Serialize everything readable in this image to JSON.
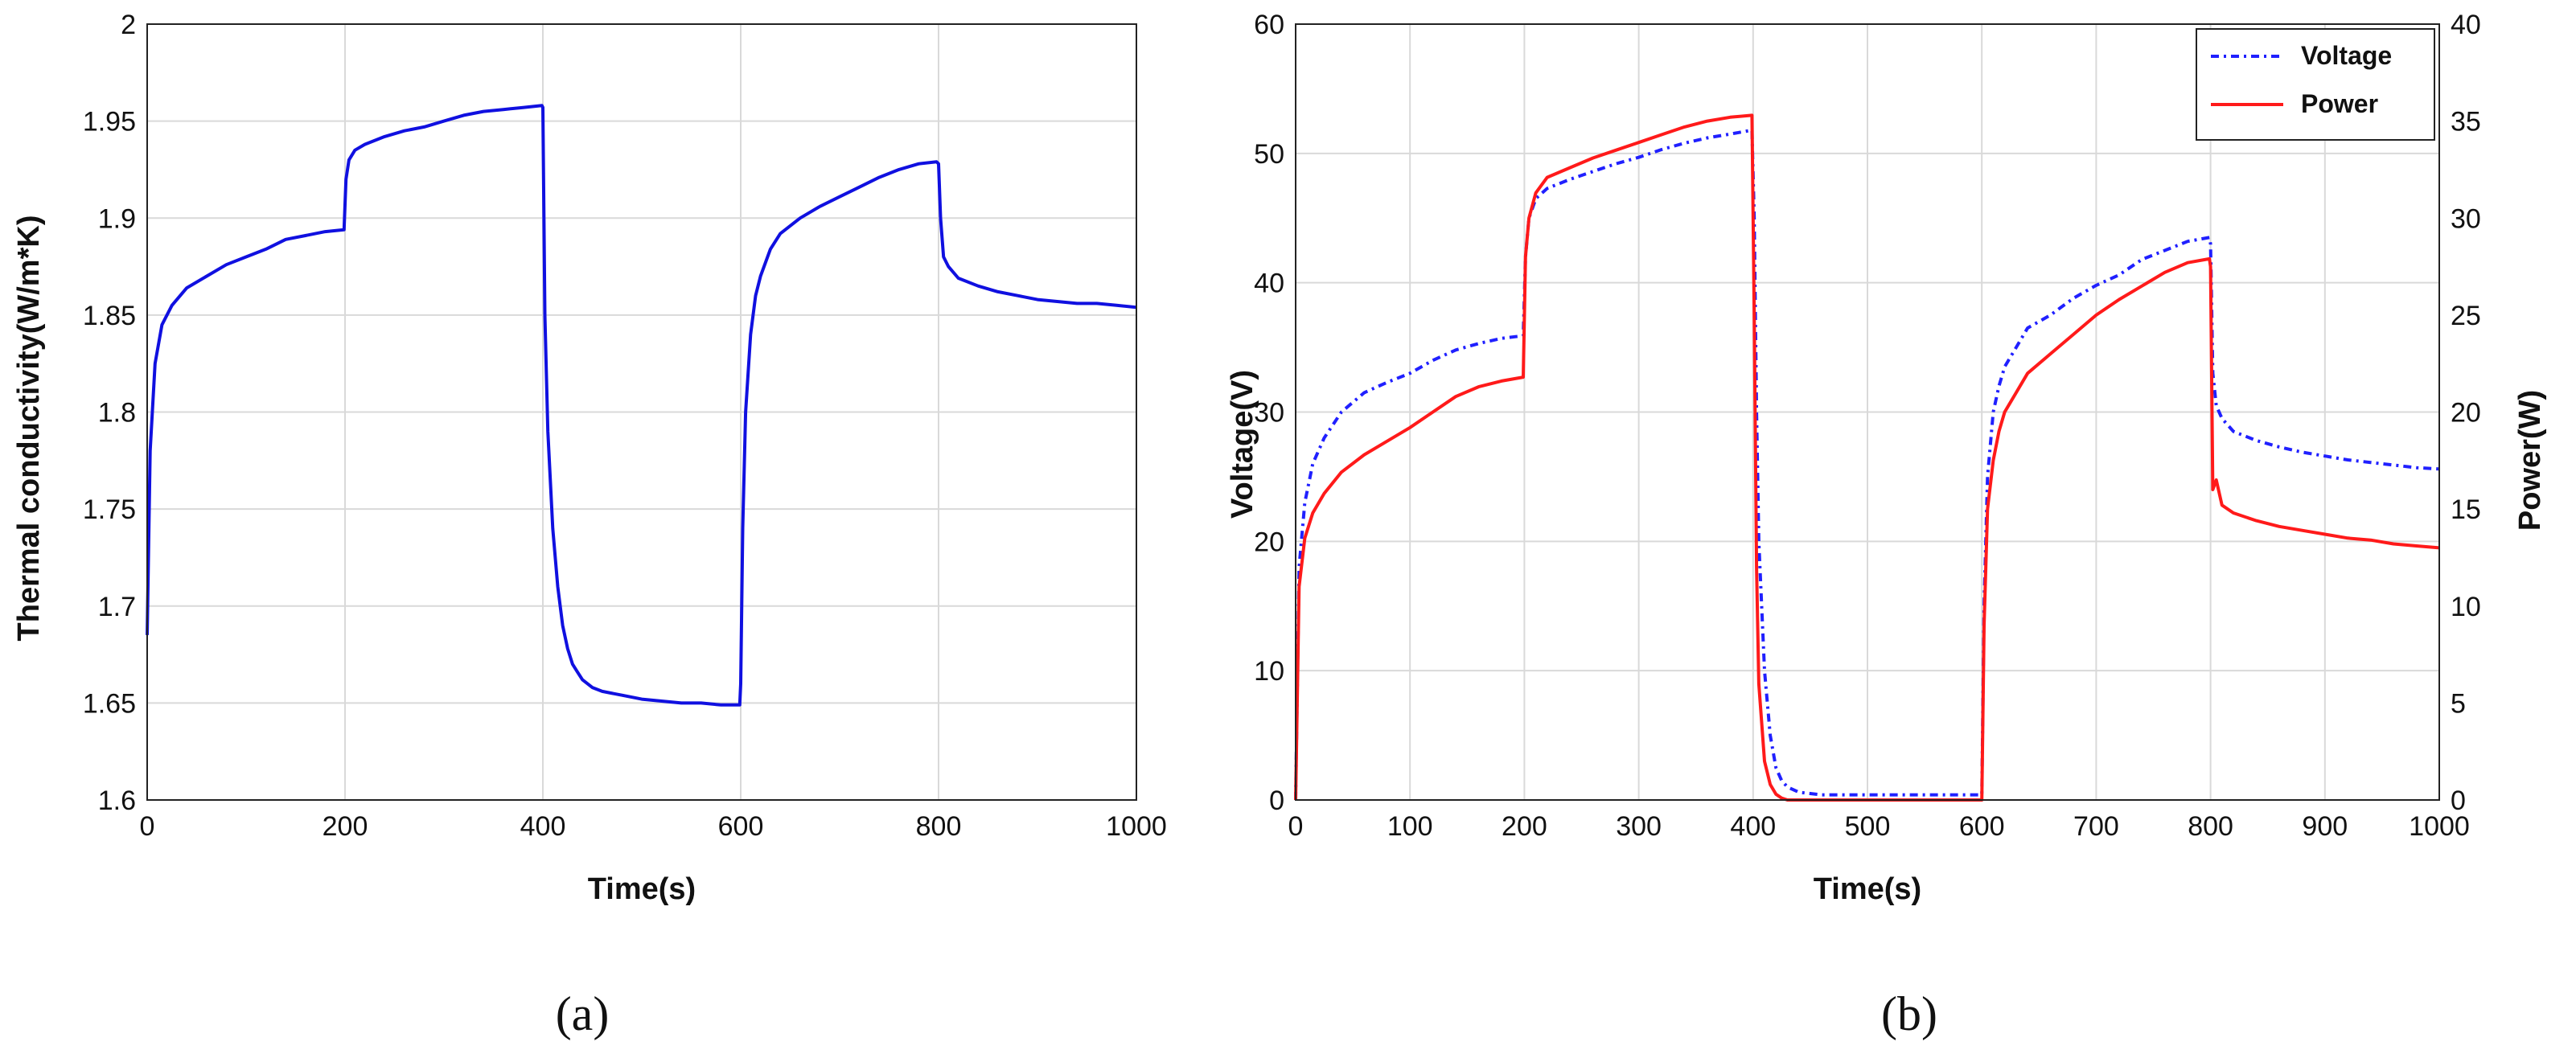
{
  "figure": {
    "panel_a_label": "(a)",
    "panel_b_label": "(b)"
  },
  "chart_data": [
    {
      "type": "line",
      "xlabel": "Time(s)",
      "ylabel": "Thermal conductivity(W/m*K)",
      "xlim": [
        0,
        1000
      ],
      "ylim": [
        1.6,
        2.0
      ],
      "grid": true,
      "x_ticks": [
        "0",
        "200",
        "400",
        "600",
        "800",
        "1000"
      ],
      "y_ticks": [
        "1.6",
        "1.65",
        "1.7",
        "1.75",
        "1.8",
        "1.85",
        "1.9",
        "1.95",
        "2"
      ],
      "color": "#1010e0",
      "series": [
        {
          "x": [
            0,
            3,
            8,
            15,
            25,
            40,
            60,
            80,
            100,
            120,
            140,
            160,
            180,
            199,
            201,
            204,
            210,
            220,
            240,
            260,
            280,
            300,
            320,
            340,
            360,
            380,
            399,
            400,
            402,
            405,
            410,
            415,
            420,
            425,
            430,
            435,
            440,
            450,
            460,
            480,
            500,
            520,
            540,
            560,
            580,
            599,
            600,
            602,
            605,
            610,
            615,
            620,
            630,
            640,
            660,
            680,
            700,
            720,
            740,
            760,
            780,
            798,
            800,
            802,
            805,
            810,
            820,
            840,
            860,
            880,
            900,
            920,
            940,
            960,
            980,
            1000
          ],
          "y": [
            1.685,
            1.78,
            1.825,
            1.845,
            1.855,
            1.864,
            1.87,
            1.876,
            1.88,
            1.884,
            1.889,
            1.891,
            1.893,
            1.894,
            1.92,
            1.93,
            1.935,
            1.938,
            1.942,
            1.945,
            1.947,
            1.95,
            1.953,
            1.955,
            1.956,
            1.957,
            1.958,
            1.957,
            1.85,
            1.79,
            1.74,
            1.71,
            1.69,
            1.678,
            1.67,
            1.666,
            1.662,
            1.658,
            1.656,
            1.654,
            1.652,
            1.651,
            1.65,
            1.65,
            1.649,
            1.649,
            1.66,
            1.74,
            1.8,
            1.84,
            1.86,
            1.87,
            1.884,
            1.892,
            1.9,
            1.906,
            1.911,
            1.916,
            1.921,
            1.925,
            1.928,
            1.929,
            1.928,
            1.9,
            1.88,
            1.875,
            1.869,
            1.865,
            1.862,
            1.86,
            1.858,
            1.857,
            1.856,
            1.856,
            1.855,
            1.854
          ]
        }
      ]
    },
    {
      "type": "line",
      "xlabel": "Time(s)",
      "ylabel": "Voltage(V)",
      "y2label": "Power(W)",
      "xlim": [
        0,
        1000
      ],
      "ylim": [
        0,
        60
      ],
      "y2lim": [
        0,
        40
      ],
      "grid": true,
      "legend_position": "top-right",
      "x_ticks": [
        "0",
        "100",
        "200",
        "300",
        "400",
        "500",
        "600",
        "700",
        "800",
        "900",
        "1000"
      ],
      "y_ticks": [
        "0",
        "10",
        "20",
        "30",
        "40",
        "50",
        "60"
      ],
      "y2_ticks": [
        "0",
        "5",
        "10",
        "15",
        "20",
        "25",
        "30",
        "35",
        "40"
      ],
      "series": [
        {
          "name": "Voltage",
          "axis": "left",
          "color": "#2020ff",
          "dash": "dashdot",
          "x": [
            0,
            3,
            8,
            15,
            25,
            40,
            60,
            80,
            100,
            120,
            140,
            160,
            180,
            199,
            201,
            204,
            210,
            220,
            240,
            260,
            280,
            300,
            320,
            340,
            360,
            380,
            399,
            401,
            403,
            405,
            410,
            415,
            420,
            425,
            430,
            440,
            460,
            480,
            500,
            550,
            600,
            602,
            605,
            610,
            615,
            620,
            630,
            640,
            660,
            680,
            700,
            720,
            740,
            760,
            780,
            799,
            800,
            802,
            805,
            810,
            820,
            840,
            860,
            880,
            900,
            920,
            940,
            960,
            980,
            1000
          ],
          "y": [
            0,
            18,
            23,
            26,
            28,
            30,
            31.5,
            32.3,
            33,
            34,
            34.8,
            35.3,
            35.7,
            35.9,
            42,
            45,
            46.5,
            47.3,
            48,
            48.6,
            49.2,
            49.7,
            50.3,
            50.8,
            51.2,
            51.5,
            51.8,
            45,
            30,
            20,
            10,
            5,
            2.5,
            1.5,
            1,
            0.6,
            0.4,
            0.4,
            0.4,
            0.4,
            0.4,
            15,
            25,
            30,
            32,
            33.5,
            35,
            36.5,
            37.5,
            38.8,
            39.8,
            40.6,
            41.8,
            42.5,
            43.2,
            43.5,
            43,
            33,
            30.5,
            29.5,
            28.5,
            27.8,
            27.3,
            26.9,
            26.6,
            26.3,
            26.1,
            25.9,
            25.7,
            25.6
          ]
        },
        {
          "name": "Power",
          "axis": "right",
          "color": "#ff1a1a",
          "dash": "solid",
          "x": [
            0,
            3,
            8,
            15,
            25,
            40,
            60,
            80,
            100,
            120,
            140,
            160,
            180,
            199,
            201,
            204,
            210,
            220,
            240,
            260,
            280,
            300,
            320,
            340,
            360,
            380,
            399,
            401,
            403,
            405,
            410,
            415,
            420,
            425,
            430,
            440,
            460,
            480,
            500,
            550,
            600,
            602,
            605,
            610,
            615,
            620,
            630,
            640,
            660,
            680,
            700,
            720,
            740,
            760,
            780,
            799,
            800,
            802,
            805,
            810,
            820,
            840,
            860,
            880,
            900,
            920,
            940,
            960,
            980,
            1000
          ],
          "y": [
            0,
            11,
            13.5,
            14.8,
            15.8,
            16.9,
            17.8,
            18.5,
            19.2,
            20,
            20.8,
            21.3,
            21.6,
            21.8,
            28,
            30,
            31.3,
            32.1,
            32.6,
            33.1,
            33.5,
            33.9,
            34.3,
            34.7,
            35,
            35.2,
            35.3,
            25,
            12,
            6,
            2,
            0.8,
            0.3,
            0.1,
            0,
            0,
            0,
            0,
            0,
            0,
            0,
            9,
            15,
            17.5,
            19,
            20,
            21,
            22,
            23,
            24,
            25,
            25.8,
            26.5,
            27.2,
            27.7,
            27.9,
            27.5,
            16,
            16.5,
            15.2,
            14.8,
            14.4,
            14.1,
            13.9,
            13.7,
            13.5,
            13.4,
            13.2,
            13.1,
            13
          ]
        }
      ]
    }
  ]
}
